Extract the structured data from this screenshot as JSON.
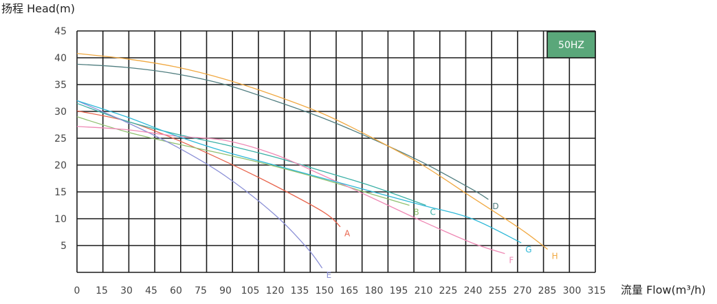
{
  "chart_data": {
    "type": "line",
    "ylabel": "扬程 Head(m)",
    "xlabel": "流量 Flow(m³/h)",
    "badge": "50HZ",
    "badge_color": "#5aa77a",
    "xlim": [
      0,
      315
    ],
    "ylim": [
      0,
      45
    ],
    "x_ticks": [
      0,
      15,
      30,
      45,
      60,
      75,
      90,
      105,
      120,
      135,
      150,
      165,
      180,
      195,
      210,
      225,
      240,
      255,
      270,
      285,
      300,
      315
    ],
    "y_ticks": [
      5,
      10,
      15,
      20,
      25,
      30,
      35,
      40,
      45
    ],
    "grid": true,
    "series": [
      {
        "name": "A",
        "color": "#e8644c",
        "x": [
          0,
          30,
          60,
          90,
          120,
          150,
          160
        ],
        "y": [
          30.1,
          28.2,
          24.8,
          20.7,
          16.2,
          11.2,
          8.5
        ]
      },
      {
        "name": "B",
        "color": "#8fc06f",
        "x": [
          0,
          30,
          60,
          90,
          120,
          150,
          180,
          202
        ],
        "y": [
          29.0,
          26.2,
          24.0,
          22.0,
          19.8,
          17.3,
          14.5,
          12.5
        ]
      },
      {
        "name": "C",
        "color": "#3ab0a6",
        "x": [
          0,
          30,
          60,
          90,
          120,
          150,
          180,
          212
        ],
        "y": [
          31.5,
          28.2,
          25.8,
          23.8,
          21.5,
          18.8,
          16.0,
          12.5
        ]
      },
      {
        "name": "D",
        "color": "#4f7d7f",
        "x": [
          0,
          30,
          60,
          90,
          120,
          150,
          180,
          210,
          240,
          250
        ],
        "y": [
          38.8,
          38.2,
          37.0,
          35.0,
          32.0,
          28.7,
          24.8,
          20.5,
          15.5,
          13.6
        ]
      },
      {
        "name": "E",
        "color": "#8a8fd6",
        "x": [
          0,
          30,
          60,
          90,
          120,
          140,
          149
        ],
        "y": [
          32.0,
          28.0,
          23.5,
          18.0,
          10.8,
          4.5,
          0.8
        ]
      },
      {
        "name": "F",
        "color": "#ee88b4",
        "x": [
          0,
          30,
          60,
          90,
          120,
          150,
          180,
          210,
          240,
          260
        ],
        "y": [
          27.2,
          26.6,
          25.4,
          24.6,
          22.0,
          18.0,
          13.8,
          9.5,
          5.5,
          3.5
        ]
      },
      {
        "name": "G",
        "color": "#2eb8d8",
        "x": [
          0,
          30,
          60,
          90,
          120,
          150,
          180,
          210,
          240,
          270
        ],
        "y": [
          32.0,
          29.0,
          25.5,
          22.5,
          20.0,
          17.5,
          15.0,
          12.5,
          10.0,
          5.5
        ]
      },
      {
        "name": "H",
        "color": "#f0a840",
        "x": [
          0,
          30,
          60,
          90,
          120,
          150,
          180,
          210,
          240,
          270,
          286
        ],
        "y": [
          40.8,
          39.8,
          38.3,
          36.0,
          33.0,
          29.5,
          25.0,
          20.0,
          14.0,
          8.0,
          4.3
        ]
      }
    ]
  }
}
